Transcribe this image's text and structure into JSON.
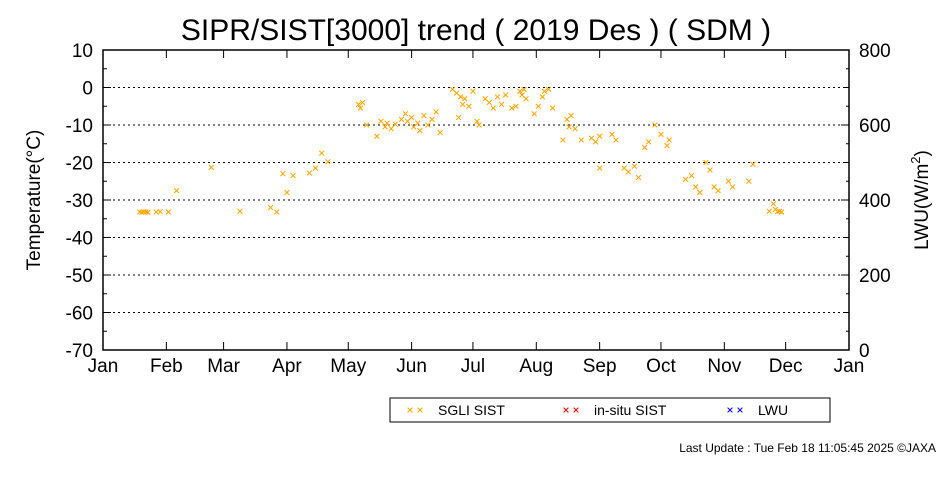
{
  "chart_data": {
    "type": "scatter",
    "title": "SIPR/SIST[3000] trend ( 2019 Des ) ( SDM )",
    "ylabel": "Temperature(°C)",
    "y2label_main": "LWU(W/m",
    "y2label_sup": "2",
    "y2label_end": ")",
    "xlim": [
      "2019-01-01",
      "2020-01-01"
    ],
    "ylim": [
      -70,
      10
    ],
    "y2lim": [
      0,
      800
    ],
    "yticks": [
      "10",
      "0",
      "-10",
      "-20",
      "-30",
      "-40",
      "-50",
      "-60",
      "-70"
    ],
    "y2ticks": [
      "800",
      "600",
      "400",
      "200",
      "0"
    ],
    "xtick_labels": [
      "Jan",
      "Feb",
      "Mar",
      "Apr",
      "May",
      "Jun",
      "Jul",
      "Aug",
      "Sep",
      "Oct",
      "Nov",
      "Dec",
      "Jan"
    ],
    "grid": "horizontal dotted",
    "legend_position": "bottom",
    "series": [
      {
        "name": "SGLI SIST",
        "color": "#FFA500",
        "marker": "x",
        "points": [
          [
            "2019-01-19",
            -33.2
          ],
          [
            "2019-01-20",
            -33.3
          ],
          [
            "2019-01-21",
            -33.1
          ],
          [
            "2019-01-22",
            -33.2
          ],
          [
            "2019-01-23",
            -33.3
          ],
          [
            "2019-01-27",
            -33.2
          ],
          [
            "2019-01-29",
            -33.1
          ],
          [
            "2019-02-02",
            -33.2
          ],
          [
            "2019-02-06",
            -27.5
          ],
          [
            "2019-02-23",
            -21.3
          ],
          [
            "2019-03-09",
            -33.0
          ],
          [
            "2019-03-24",
            -32.0
          ],
          [
            "2019-03-27",
            -33.2
          ],
          [
            "2019-03-30",
            -23.0
          ],
          [
            "2019-04-01",
            -28.0
          ],
          [
            "2019-04-04",
            -23.5
          ],
          [
            "2019-04-12",
            -22.8
          ],
          [
            "2019-04-15",
            -21.5
          ],
          [
            "2019-04-18",
            -17.5
          ],
          [
            "2019-04-21",
            -19.8
          ],
          [
            "2019-05-06",
            -4.5
          ],
          [
            "2019-05-07",
            -5.5
          ],
          [
            "2019-05-08",
            -4.0
          ],
          [
            "2019-05-10",
            -10.0
          ],
          [
            "2019-05-15",
            -13.0
          ],
          [
            "2019-05-17",
            -9.0
          ],
          [
            "2019-05-19",
            -10.5
          ],
          [
            "2019-05-20",
            -9.5
          ],
          [
            "2019-05-22",
            -11.0
          ],
          [
            "2019-05-24",
            -9.8
          ],
          [
            "2019-05-27",
            -8.5
          ],
          [
            "2019-05-29",
            -7.0
          ],
          [
            "2019-05-30",
            -9.0
          ],
          [
            "2019-06-01",
            -8.0
          ],
          [
            "2019-06-02",
            -10.5
          ],
          [
            "2019-06-04",
            -9.5
          ],
          [
            "2019-06-05",
            -11.5
          ],
          [
            "2019-06-07",
            -7.5
          ],
          [
            "2019-06-09",
            -10.0
          ],
          [
            "2019-06-11",
            -8.5
          ],
          [
            "2019-06-13",
            -6.5
          ],
          [
            "2019-06-15",
            -12.0
          ],
          [
            "2019-06-21",
            -0.5
          ],
          [
            "2019-06-23",
            -1.5
          ],
          [
            "2019-06-24",
            -8.0
          ],
          [
            "2019-06-25",
            -2.5
          ],
          [
            "2019-06-26",
            -4.5
          ],
          [
            "2019-06-27",
            -3.0
          ],
          [
            "2019-06-29",
            -5.0
          ],
          [
            "2019-07-01",
            -1.0
          ],
          [
            "2019-07-03",
            -9.0
          ],
          [
            "2019-07-04",
            -10.0
          ],
          [
            "2019-07-07",
            -3.0
          ],
          [
            "2019-07-09",
            -4.0
          ],
          [
            "2019-07-11",
            -5.5
          ],
          [
            "2019-07-13",
            -2.5
          ],
          [
            "2019-07-15",
            -4.5
          ],
          [
            "2019-07-17",
            -2.0
          ],
          [
            "2019-07-20",
            -5.5
          ],
          [
            "2019-07-22",
            -5.0
          ],
          [
            "2019-07-24",
            -1.0
          ],
          [
            "2019-07-25",
            -2.0
          ],
          [
            "2019-07-26",
            -0.5
          ],
          [
            "2019-07-27",
            -3.0
          ],
          [
            "2019-07-31",
            -7.0
          ],
          [
            "2019-08-02",
            -5.0
          ],
          [
            "2019-08-04",
            -2.5
          ],
          [
            "2019-08-05",
            -1.0
          ],
          [
            "2019-08-07",
            -0.5
          ],
          [
            "2019-08-09",
            -5.5
          ],
          [
            "2019-08-14",
            -14.0
          ],
          [
            "2019-08-16",
            -8.5
          ],
          [
            "2019-08-17",
            -10.5
          ],
          [
            "2019-08-18",
            -7.5
          ],
          [
            "2019-08-20",
            -11.0
          ],
          [
            "2019-08-23",
            -14.0
          ],
          [
            "2019-08-28",
            -13.5
          ],
          [
            "2019-08-30",
            -14.5
          ],
          [
            "2019-09-01",
            -13.0
          ],
          [
            "2019-09-01",
            -21.5
          ],
          [
            "2019-09-07",
            -12.5
          ],
          [
            "2019-09-09",
            -14.0
          ],
          [
            "2019-09-13",
            -21.5
          ],
          [
            "2019-09-15",
            -22.5
          ],
          [
            "2019-09-18",
            -21.0
          ],
          [
            "2019-09-20",
            -24.0
          ],
          [
            "2019-09-23",
            -16.0
          ],
          [
            "2019-09-25",
            -14.5
          ],
          [
            "2019-09-28",
            -10.0
          ],
          [
            "2019-10-01",
            -12.5
          ],
          [
            "2019-10-04",
            -15.5
          ],
          [
            "2019-10-05",
            -14.0
          ],
          [
            "2019-10-13",
            -24.5
          ],
          [
            "2019-10-16",
            -23.5
          ],
          [
            "2019-10-18",
            -26.5
          ],
          [
            "2019-10-20",
            -28.0
          ],
          [
            "2019-10-23",
            -20.0
          ],
          [
            "2019-10-25",
            -22.0
          ],
          [
            "2019-10-27",
            -26.5
          ],
          [
            "2019-10-29",
            -27.5
          ],
          [
            "2019-11-03",
            -25.0
          ],
          [
            "2019-11-05",
            -26.5
          ],
          [
            "2019-11-13",
            -25.0
          ],
          [
            "2019-11-15",
            -20.5
          ],
          [
            "2019-11-23",
            -33.0
          ],
          [
            "2019-11-25",
            -31.0
          ],
          [
            "2019-11-26",
            -32.5
          ],
          [
            "2019-11-27",
            -33.1
          ],
          [
            "2019-11-28",
            -33.0
          ],
          [
            "2019-11-29",
            -33.2
          ]
        ]
      },
      {
        "name": "in-situ SIST",
        "color": "#FF0000",
        "marker": "x",
        "points": []
      },
      {
        "name": "LWU",
        "color": "#0000FF",
        "marker": "x",
        "points": []
      }
    ]
  },
  "footer": "Last Update : Tue Feb 18 11:05:45 2025  ©JAXA"
}
